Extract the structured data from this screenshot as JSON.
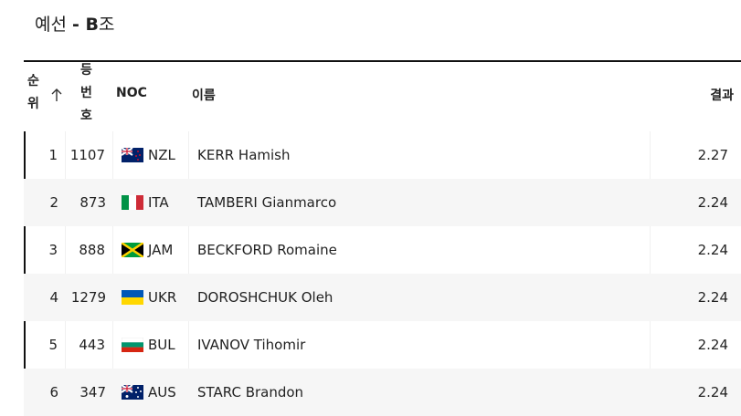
{
  "heading": {
    "stage": "예선",
    "group": "- B",
    "suffix": "조"
  },
  "table": {
    "columns": [
      "순위",
      "등번호",
      "NOC",
      "이름",
      "결과"
    ],
    "rows": [
      [
        1,
        1107,
        "NZL",
        "KERR Hamish",
        2.27
      ],
      [
        2,
        873,
        "ITA",
        "TAMBERI Gianmarco",
        2.24
      ],
      [
        3,
        888,
        "JAM",
        "BECKFORD Romaine",
        2.24
      ],
      [
        4,
        1279,
        "UKR",
        "DOROSHCHUK Oleh",
        2.24
      ],
      [
        5,
        443,
        "BUL",
        "IVANOV Tihomir",
        2.24
      ],
      [
        6,
        347,
        "AUS",
        "STARC Brandon",
        2.24
      ]
    ]
  }
}
